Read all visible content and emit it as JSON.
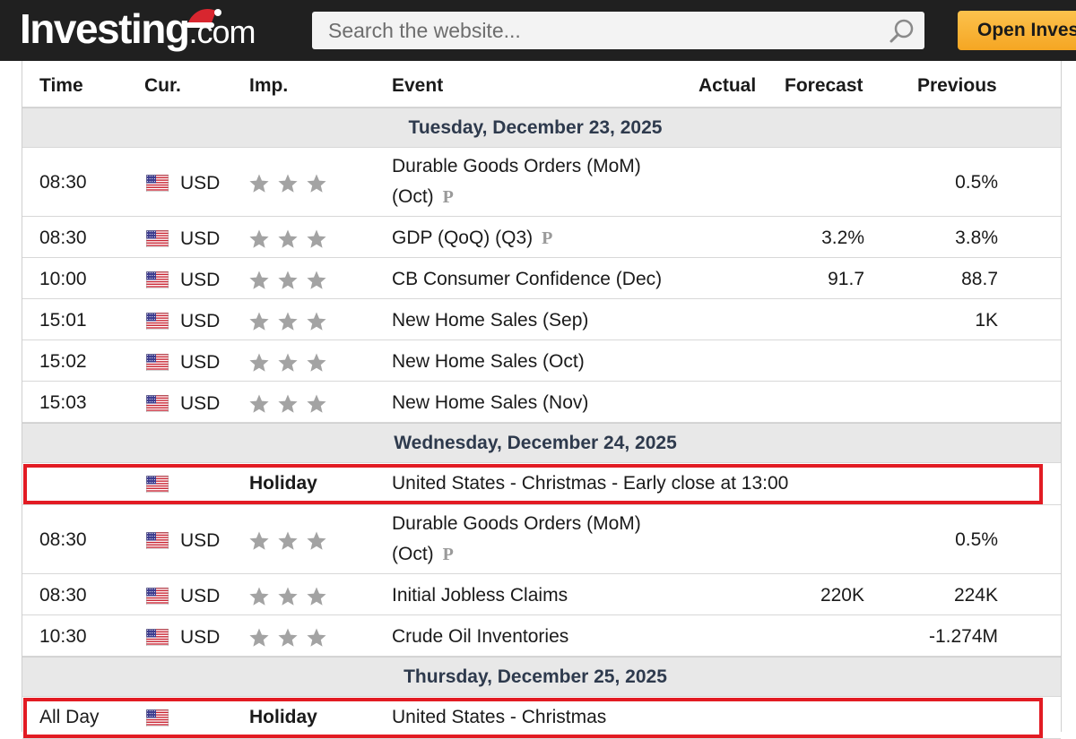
{
  "header": {
    "logo_main": "Investing",
    "logo_com": ".com",
    "search_placeholder": "Search the website...",
    "open_button": "Open Investing Account"
  },
  "columns": {
    "time": "Time",
    "currency": "Cur.",
    "importance": "Imp.",
    "event": "Event",
    "actual": "Actual",
    "forecast": "Forecast",
    "previous": "Previous"
  },
  "days": [
    {
      "date": "Tuesday, December 23, 2025",
      "events": [
        {
          "time": "08:30",
          "currency": "USD",
          "event_line1": "Durable Goods Orders (MoM)",
          "event_line2": "(Oct)",
          "preliminary": true,
          "actual": "",
          "forecast": "",
          "previous": "0.5%"
        },
        {
          "time": "08:30",
          "currency": "USD",
          "event": "GDP (QoQ) (Q3)",
          "preliminary": true,
          "actual": "",
          "forecast": "3.2%",
          "previous": "3.8%"
        },
        {
          "time": "10:00",
          "currency": "USD",
          "event": "CB Consumer Confidence (Dec)",
          "actual": "",
          "forecast": "91.7",
          "previous": "88.7"
        },
        {
          "time": "15:01",
          "currency": "USD",
          "event": "New Home Sales (Sep)",
          "actual": "",
          "forecast": "",
          "previous": "1K"
        },
        {
          "time": "15:02",
          "currency": "USD",
          "event": "New Home Sales (Oct)",
          "actual": "",
          "forecast": "",
          "previous": ""
        },
        {
          "time": "15:03",
          "currency": "USD",
          "event": "New Home Sales (Nov)",
          "actual": "",
          "forecast": "",
          "previous": ""
        }
      ]
    },
    {
      "date": "Wednesday, December 24, 2025",
      "holiday": {
        "time": "",
        "label": "Holiday",
        "event": "United States - Christmas - Early close at 13:00"
      },
      "events": [
        {
          "time": "08:30",
          "currency": "USD",
          "event_line1": "Durable Goods Orders (MoM)",
          "event_line2": "(Oct)",
          "preliminary": true,
          "actual": "",
          "forecast": "",
          "previous": "0.5%"
        },
        {
          "time": "08:30",
          "currency": "USD",
          "event": "Initial Jobless Claims",
          "actual": "",
          "forecast": "220K",
          "previous": "224K"
        },
        {
          "time": "10:30",
          "currency": "USD",
          "event": "Crude Oil Inventories",
          "actual": "",
          "forecast": "",
          "previous": "-1.274M"
        }
      ]
    },
    {
      "date": "Thursday, December 25, 2025",
      "holiday": {
        "time": "All Day",
        "label": "Holiday",
        "event": "United States - Christmas"
      },
      "events": []
    }
  ],
  "preliminary_mark": "P",
  "colors": {
    "topbar": "#202020",
    "accent_button": "#f5a623",
    "highlight_box": "#e21b23",
    "date_row_bg": "#e8e8e8",
    "star": "#a3a3a3"
  },
  "icons": {
    "flag": "us-flag-icon",
    "importance": "star-icon",
    "search": "search-icon",
    "preliminary": "preliminary-p-icon"
  }
}
